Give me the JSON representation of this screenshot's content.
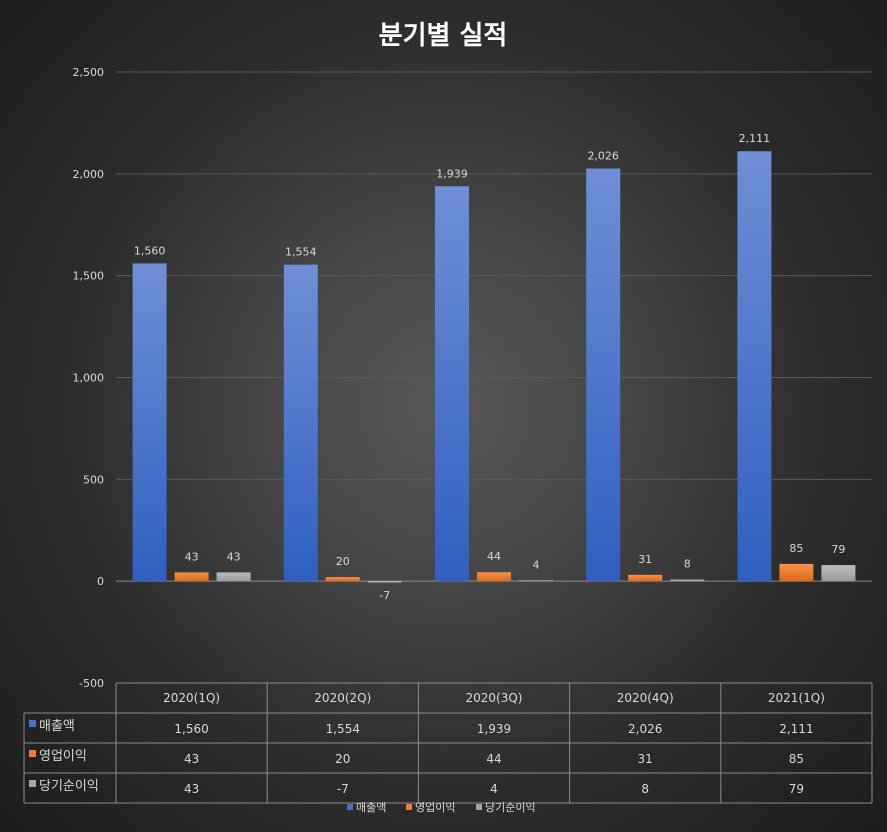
{
  "chart_data": {
    "type": "bar",
    "title": "분기별 실적",
    "categories": [
      "2020(1Q)",
      "2020(2Q)",
      "2020(3Q)",
      "2020(4Q)",
      "2021(1Q)"
    ],
    "series": [
      {
        "name": "매출액",
        "values": [
          1560,
          1554,
          1939,
          2026,
          2111
        ],
        "labels": [
          "1,560",
          "1,554",
          "1,939",
          "2,026",
          "2,111"
        ],
        "color": "#4472c4"
      },
      {
        "name": "영업이익",
        "values": [
          43,
          20,
          44,
          31,
          85
        ],
        "labels": [
          "43",
          "20",
          "44",
          "31",
          "85"
        ],
        "color": "#ed7d31"
      },
      {
        "name": "당기순이익",
        "values": [
          43,
          -7,
          4,
          8,
          79
        ],
        "labels": [
          "43",
          "-7",
          "4",
          "8",
          "79"
        ],
        "color": "#a5a5a5"
      }
    ],
    "ylim": [
      -500,
      2500
    ],
    "yticks": [
      2500,
      2000,
      1500,
      1000,
      500,
      0,
      -500
    ],
    "ytick_labels": [
      "2,500",
      "2,000",
      "1,500",
      "1,000",
      "500",
      "0",
      "-500"
    ],
    "grid": true,
    "data_table": true,
    "legend_position": "bottom"
  }
}
